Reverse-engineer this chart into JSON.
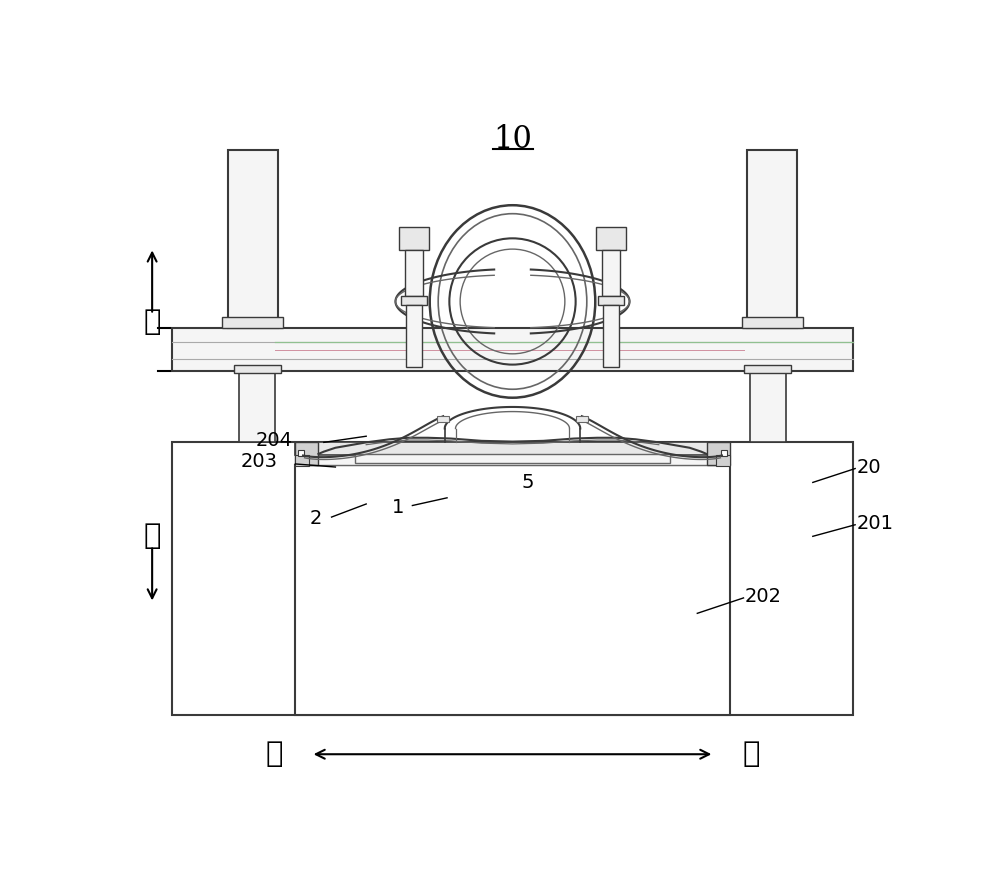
{
  "bg": "#ffffff",
  "lc_dark": "#3a3a3a",
  "lc_med": "#666666",
  "lc_light": "#aaaaaa",
  "lc_verylght": "#cccccc",
  "fill_light": "#f5f5f5",
  "fill_mid": "#e8e8e8",
  "fill_gray": "#d0d0d0",
  "green_line": "#90c090",
  "pink_line": "#d090a0",
  "fig_w": 10.0,
  "fig_h": 8.76,
  "dpi": 100,
  "title": "10",
  "label_up": "上",
  "label_down": "下",
  "label_left": "左",
  "label_right": "右"
}
